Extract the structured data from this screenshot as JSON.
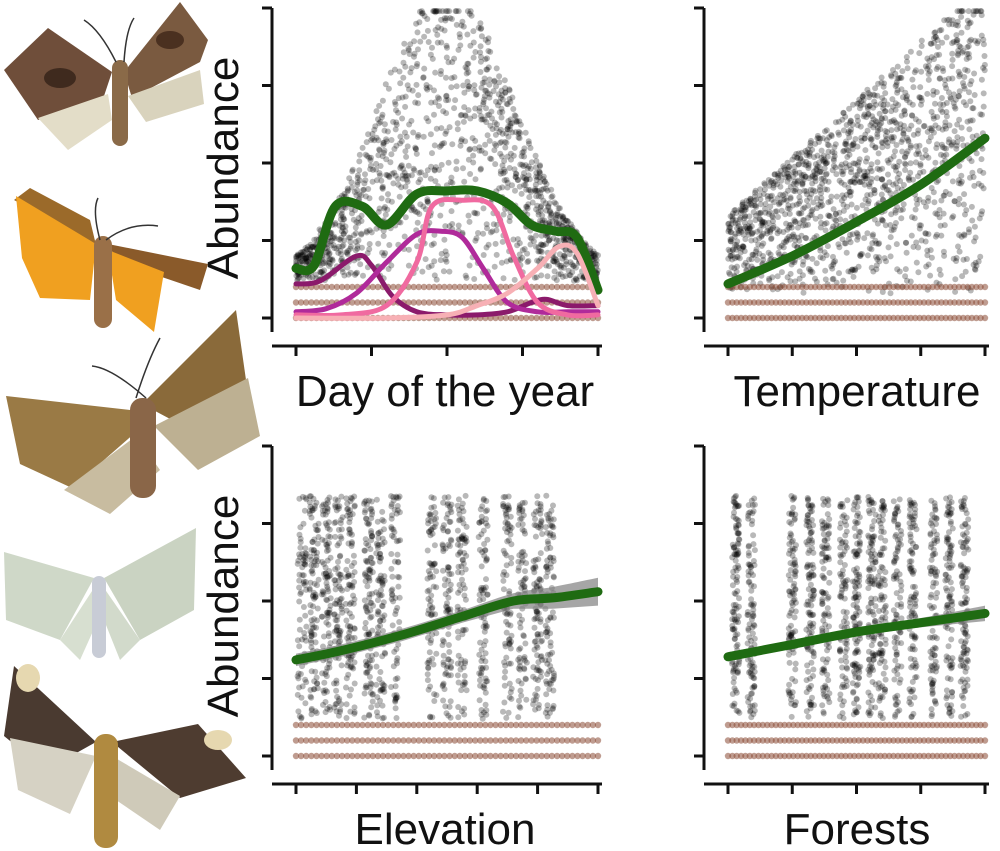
{
  "figure": {
    "colors": {
      "points": "#8b4a35",
      "fit": "#1f6b12",
      "band": "#808080",
      "axis": "#111111",
      "moth_brown": "#7a5a3a",
      "moth_orange": "#f0a020",
      "moth_pale": "#cfd8c8"
    },
    "moth_icons": [
      "brown-moth-icon",
      "orange-moth-icon",
      "olive-moth-icon",
      "pale-green-moth-icon",
      "dark-moth-icon"
    ]
  },
  "chart_data": [
    {
      "type": "scatter",
      "panel": "top-left",
      "xlabel": "Day of the year",
      "ylabel": "Abundance",
      "xlim": [
        0,
        1
      ],
      "ylim": [
        0,
        1
      ],
      "x_ticks": 4,
      "y_ticks": 5,
      "grid": false,
      "points_shape": "dense cloud peaking near the middle of the season",
      "series": [
        {
          "color": "#1f6b12",
          "x": [
            0,
            0.06,
            0.13,
            0.22,
            0.3,
            0.4,
            0.5,
            0.6,
            0.7,
            0.78,
            0.86,
            0.93,
            1.0
          ],
          "y": [
            0.16,
            0.17,
            0.36,
            0.36,
            0.3,
            0.4,
            0.41,
            0.41,
            0.37,
            0.3,
            0.28,
            0.26,
            0.09
          ]
        },
        {
          "color": "#8b1a6b",
          "x": [
            0,
            0.08,
            0.2,
            0.25,
            0.32,
            0.4,
            0.5,
            0.6,
            0.7,
            0.78,
            0.83,
            0.9,
            1.0
          ],
          "y": [
            0.11,
            0.12,
            0.2,
            0.17,
            0.07,
            0.02,
            0.01,
            0.01,
            0.02,
            0.05,
            0.06,
            0.04,
            0.04
          ]
        },
        {
          "color": "#b02a9a",
          "x": [
            0,
            0.1,
            0.2,
            0.3,
            0.4,
            0.48,
            0.55,
            0.62,
            0.7,
            0.8,
            0.9,
            1.0
          ],
          "y": [
            0.02,
            0.03,
            0.08,
            0.18,
            0.27,
            0.28,
            0.26,
            0.16,
            0.05,
            0.02,
            0.02,
            0.02
          ]
        },
        {
          "color": "#f06aa0",
          "x": [
            0,
            0.15,
            0.3,
            0.4,
            0.45,
            0.55,
            0.65,
            0.72,
            0.8,
            0.9,
            1.0
          ],
          "y": [
            0.01,
            0.01,
            0.04,
            0.18,
            0.36,
            0.38,
            0.36,
            0.2,
            0.05,
            0.01,
            0.01
          ]
        },
        {
          "color": "#f7b0b5",
          "x": [
            0,
            0.3,
            0.5,
            0.6,
            0.7,
            0.8,
            0.87,
            0.93,
            1.0
          ],
          "y": [
            0.0,
            0.0,
            0.01,
            0.04,
            0.08,
            0.16,
            0.23,
            0.21,
            0.04
          ]
        }
      ]
    },
    {
      "type": "scatter",
      "panel": "top-right",
      "xlabel": "Temperature",
      "ylabel": "",
      "xlim": [
        0,
        1
      ],
      "ylim": [
        0,
        1
      ],
      "x_ticks": 4,
      "y_ticks": 5,
      "grid": false,
      "points_shape": "cloud rising with temperature",
      "series": [
        {
          "color": "#1f6b12",
          "x": [
            0,
            0.25,
            0.5,
            0.75,
            1.0
          ],
          "y": [
            0.11,
            0.2,
            0.31,
            0.43,
            0.58
          ]
        }
      ]
    },
    {
      "type": "scatter",
      "panel": "bottom-left",
      "xlabel": "Elevation",
      "ylabel": "Abundance",
      "xlim": [
        0,
        1
      ],
      "ylim": [
        0,
        1
      ],
      "x_ticks": 5,
      "y_ticks": 5,
      "grid": false,
      "points_shape": "vertical strips of points at discrete elevations",
      "series": [
        {
          "color": "#1f6b12",
          "x": [
            0,
            0.15,
            0.35,
            0.55,
            0.72,
            0.85,
            1.0
          ],
          "y": [
            0.31,
            0.34,
            0.39,
            0.45,
            0.5,
            0.51,
            0.53
          ],
          "band": [
            0.02,
            0.02,
            0.02,
            0.02,
            0.025,
            0.035,
            0.045
          ]
        }
      ]
    },
    {
      "type": "scatter",
      "panel": "bottom-right",
      "xlabel": "Forests",
      "ylabel": "",
      "xlim": [
        0,
        1
      ],
      "ylim": [
        0,
        1
      ],
      "x_ticks": 4,
      "y_ticks": 5,
      "grid": false,
      "points_shape": "vertical strips of points at discrete forest cover values",
      "series": [
        {
          "color": "#1f6b12",
          "x": [
            0,
            0.25,
            0.5,
            0.75,
            1.0
          ],
          "y": [
            0.32,
            0.36,
            0.4,
            0.43,
            0.46
          ],
          "band": [
            0.015,
            0.012,
            0.012,
            0.015,
            0.025
          ]
        }
      ]
    }
  ]
}
